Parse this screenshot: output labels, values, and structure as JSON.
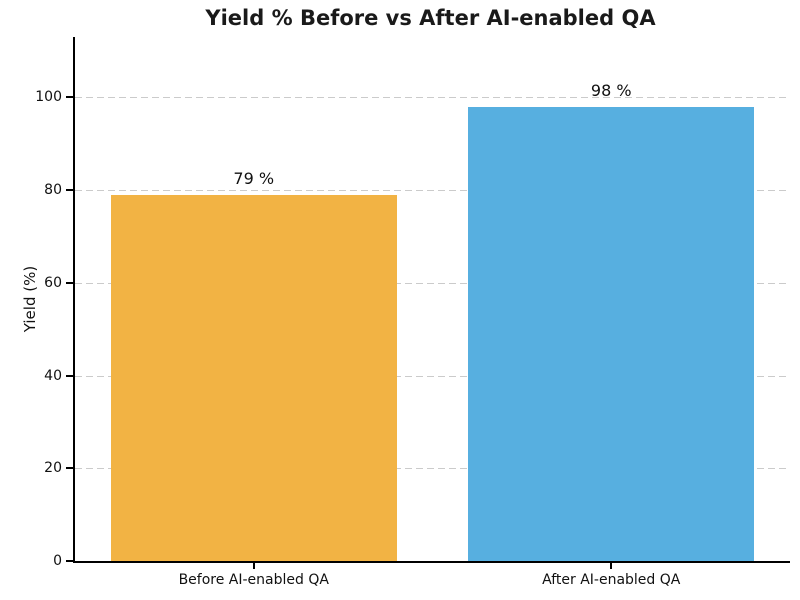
{
  "chart_data": {
    "type": "bar",
    "title": "Yield % Before vs After AI-enabled QA",
    "xlabel": "",
    "ylabel": "Yield (%)",
    "categories": [
      "Before AI-enabled QA",
      "After AI-enabled QA"
    ],
    "values": [
      79,
      98
    ],
    "bar_labels": [
      "79 %",
      "98 %"
    ],
    "bar_colors": [
      "#F2B344",
      "#57AFE0"
    ],
    "yticks": [
      0,
      20,
      40,
      60,
      80,
      100
    ],
    "ylim": [
      0,
      113
    ],
    "bar_width_fraction": 0.8,
    "grid": "horizontal-dashed",
    "gridline_color": "#cbcbcb",
    "background_color": "#ffffff",
    "text_color": "#111111",
    "legend": "none"
  }
}
